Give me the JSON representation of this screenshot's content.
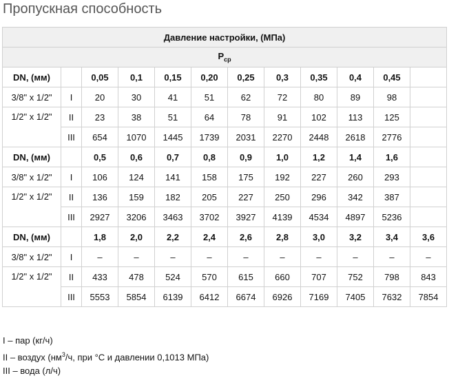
{
  "page_title": "Пропускная способность",
  "table": {
    "header": "Давление настройки, (МПа)",
    "pcp_main": "P",
    "pcp_sub": "ср",
    "dn_label": "DN, (мм)",
    "blocks": [
      {
        "pressures": [
          "0,05",
          "0,1",
          "0,15",
          "0,20",
          "0,25",
          "0,3",
          "0,35",
          "0,4",
          "0,45",
          ""
        ],
        "rows": [
          {
            "size": "3/8\" x 1/2\"",
            "roman": "I",
            "values": [
              "20",
              "30",
              "41",
              "51",
              "62",
              "72",
              "80",
              "89",
              "98",
              ""
            ]
          },
          {
            "size": "1/2\" x 1/2\"",
            "roman": "II",
            "values": [
              "23",
              "38",
              "51",
              "64",
              "78",
              "91",
              "102",
              "113",
              "125",
              ""
            ]
          },
          {
            "size": "",
            "roman": "III",
            "values": [
              "654",
              "1070",
              "1445",
              "1739",
              "2031",
              "2270",
              "2448",
              "2618",
              "2776",
              ""
            ]
          }
        ]
      },
      {
        "pressures": [
          "0,5",
          "0,6",
          "0,7",
          "0,8",
          "0,9",
          "1,0",
          "1,2",
          "1,4",
          "1,6",
          ""
        ],
        "rows": [
          {
            "size": "3/8\" x 1/2\"",
            "roman": "I",
            "values": [
              "106",
              "124",
              "141",
              "158",
              "175",
              "192",
              "227",
              "260",
              "293",
              ""
            ]
          },
          {
            "size": "1/2\" x 1/2\"",
            "roman": "II",
            "values": [
              "136",
              "159",
              "182",
              "205",
              "227",
              "250",
              "296",
              "342",
              "387",
              ""
            ]
          },
          {
            "size": "",
            "roman": "III",
            "values": [
              "2927",
              "3206",
              "3463",
              "3702",
              "3927",
              "4139",
              "4534",
              "4897",
              "5236",
              ""
            ]
          }
        ]
      },
      {
        "pressures": [
          "1,8",
          "2,0",
          "2,2",
          "2,4",
          "2,6",
          "2,8",
          "3,0",
          "3,2",
          "3,4",
          "3,6"
        ],
        "rows": [
          {
            "size": "3/8\" x 1/2\"",
            "roman": "I",
            "values": [
              "–",
              "–",
              "–",
              "–",
              "–",
              "–",
              "–",
              "–",
              "–",
              "–"
            ]
          },
          {
            "size": "1/2\" x 1/2\"",
            "roman": "II",
            "values": [
              "433",
              "478",
              "524",
              "570",
              "615",
              "660",
              "707",
              "752",
              "798",
              "843"
            ]
          },
          {
            "size": "",
            "roman": "III",
            "values": [
              "5553",
              "5854",
              "6139",
              "6412",
              "6674",
              "6926",
              "7169",
              "7405",
              "7632",
              "7854"
            ]
          }
        ]
      }
    ]
  },
  "legend": {
    "line1": "I – пар (кг/ч)",
    "line2_before": "II – воздух (нм",
    "line2_sup": "3",
    "line2_after": "/ч, при °С и давлении 0,1013 МПа)",
    "line3": "III – вода (л/ч)"
  }
}
